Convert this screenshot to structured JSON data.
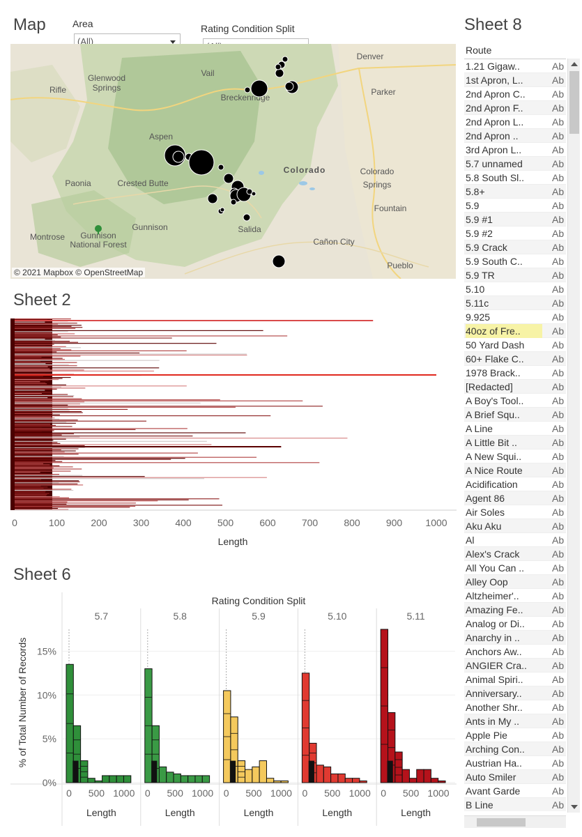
{
  "map": {
    "title": "Map",
    "attribution": "© 2021 Mapbox © OpenStreetMap",
    "places": [
      {
        "name": "Denver",
        "x": 516,
        "y": 22,
        "big": true
      },
      {
        "name": "Vail",
        "x": 283,
        "y": 46
      },
      {
        "name": "Glenwood",
        "x": 138,
        "y": 53
      },
      {
        "name": "Springs",
        "x": 138,
        "y": 67
      },
      {
        "name": "Rifle",
        "x": 68,
        "y": 70
      },
      {
        "name": "Parker",
        "x": 535,
        "y": 73
      },
      {
        "name": "Breckenridge",
        "x": 337,
        "y": 81
      },
      {
        "name": "Aspen",
        "x": 216,
        "y": 137
      },
      {
        "name": "Colorado",
        "x": 422,
        "y": 185,
        "state": true
      },
      {
        "name": "Colorado",
        "x": 526,
        "y": 187
      },
      {
        "name": "Springs",
        "x": 526,
        "y": 206
      },
      {
        "name": "Paonia",
        "x": 97,
        "y": 204
      },
      {
        "name": "Crested Butte",
        "x": 190,
        "y": 204
      },
      {
        "name": "Fountain",
        "x": 545,
        "y": 240
      },
      {
        "name": "Gunnison",
        "x": 200,
        "y": 267
      },
      {
        "name": "Salida",
        "x": 343,
        "y": 270
      },
      {
        "name": "Montrose",
        "x": 53,
        "y": 281
      },
      {
        "name": "Gunnison",
        "x": 126,
        "y": 279
      },
      {
        "name": "National Forest",
        "x": 126,
        "y": 292
      },
      {
        "name": "Cañon City",
        "x": 464,
        "y": 288
      },
      {
        "name": "Pueblo",
        "x": 559,
        "y": 322
      }
    ]
  },
  "filters": {
    "area": {
      "label": "Area",
      "value": "(All)"
    },
    "rating": {
      "label": "Rating Condition Split",
      "value": "(All)"
    }
  },
  "sheet2": {
    "title": "Sheet 2",
    "xlabel": "Length",
    "ticks": [
      "0",
      "100",
      "200",
      "300",
      "400",
      "500",
      "600",
      "700",
      "800",
      "900",
      "1000"
    ]
  },
  "sheet6": {
    "title": "Sheet 6",
    "header": "Rating Condition Split",
    "ylabel": "% of Total Number of Records",
    "yticks": [
      "15%",
      "10%",
      "5%",
      "0%"
    ],
    "xticks": [
      "0",
      "500",
      "1000"
    ],
    "xlabel": "Length",
    "panels": [
      {
        "name": "5.7",
        "color": "#2f8f3a"
      },
      {
        "name": "5.8",
        "color": "#3a9a45"
      },
      {
        "name": "5.9",
        "color": "#f4c95d"
      },
      {
        "name": "5.10",
        "color": "#e03a31"
      },
      {
        "name": "5.11",
        "color": "#b5121b"
      }
    ]
  },
  "chart_data": {
    "type": "bar",
    "title": "Sheet 6",
    "xlabel": "Length",
    "ylabel": "% of Total Number of Records",
    "categories": [
      "0-100",
      "100-200",
      "200-300",
      "300-400",
      "400-500",
      "500-600",
      "600-700",
      "700-800",
      "800-900"
    ],
    "ylim": [
      0,
      17.5
    ],
    "series": [
      {
        "name": "5.7",
        "values": [
          13.5,
          6.5,
          2.5,
          0.5,
          0.2,
          0.8,
          0.8,
          0.8,
          0.8
        ]
      },
      {
        "name": "5.8",
        "values": [
          13.0,
          6.5,
          1.8,
          1.2,
          1.0,
          0.8,
          0.8,
          0.8,
          0.8
        ]
      },
      {
        "name": "5.9",
        "values": [
          10.5,
          7.5,
          2.5,
          1.5,
          1.8,
          2.5,
          0.5,
          0.2,
          0.2
        ]
      },
      {
        "name": "5.10",
        "values": [
          12.5,
          4.5,
          2.0,
          1.8,
          1.0,
          1.0,
          0.5,
          0.5,
          0.2
        ]
      },
      {
        "name": "5.11",
        "values": [
          17.5,
          8.0,
          3.5,
          1.5,
          0.5,
          1.5,
          1.5,
          0.5,
          0.2
        ]
      }
    ]
  },
  "routes": {
    "title": "Sheet 8",
    "header": "Route",
    "value_abbrev": "Ab",
    "items": [
      "1.21 Gigaw..",
      "1st Apron, L..",
      "2nd Apron C..",
      "2nd Apron F..",
      "2nd Apron L..",
      "2nd Apron ..",
      "3rd Apron L..",
      "5.7 unnamed",
      "5.8 South Sl..",
      "5.8+",
      "5.9",
      "5.9 #1",
      "5.9 #2",
      "5.9 Crack",
      "5.9 South C..",
      "5.9 TR",
      "5.10",
      "5.11c",
      "9.925",
      "40oz of Fre..",
      "50 Yard Dash",
      "60+ Flake C..",
      "1978 Brack..",
      "[Redacted]",
      "A Boy's Tool..",
      "A Brief Squ..",
      "A Line",
      "A Little Bit ..",
      "A New Squi..",
      "A Nice Route",
      "Acidification",
      "Agent 86",
      "Air Soles",
      "Aku Aku",
      "Al",
      "Alex's Crack",
      "All You Can ..",
      "Alley Oop",
      "Altzheimer'..",
      "Amazing Fe..",
      "Analog or Di..",
      "Anarchy in ..",
      "Anchors Aw..",
      "ANGIER Cra..",
      "Animal Spiri..",
      "Anniversary..",
      "Another Shr..",
      "Ants in My ..",
      "Apple Pie",
      "Arching Con..",
      "Austrian Ha..",
      "Auto Smiler",
      "Avant Garde",
      "B Line"
    ],
    "selected_index": 19
  }
}
